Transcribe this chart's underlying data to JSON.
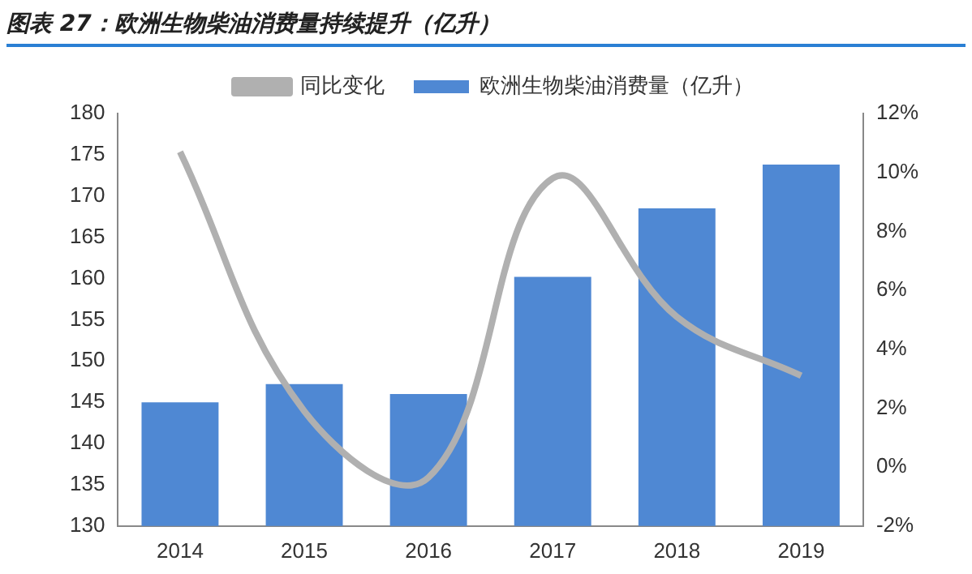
{
  "chart_data": {
    "type": "bar",
    "title": "图表 27：欧洲生物柴油消费量持续提升（亿升）",
    "categories": [
      "2014",
      "2015",
      "2016",
      "2017",
      "2018",
      "2019"
    ],
    "series": [
      {
        "name": "欧洲生物柴油消费量（亿升）",
        "color": "#4f88d3",
        "values": [
          145,
          147.2,
          146,
          160.2,
          168.5,
          173.8
        ]
      },
      {
        "name": "同比变化",
        "type": "line",
        "axis": "y2",
        "color": "#b0b0b0",
        "values": [
          10.7,
          1.9,
          -0.35,
          9.8,
          5.1,
          3.1
        ]
      }
    ],
    "ylim": [
      130,
      180
    ],
    "yticks": [
      130,
      135,
      140,
      145,
      150,
      155,
      160,
      165,
      170,
      175,
      180
    ],
    "y2lim": [
      -2,
      12
    ],
    "y2ticks": [
      {
        "value": -2,
        "label": "-2%"
      },
      {
        "value": 0,
        "label": "0%"
      },
      {
        "value": 2,
        "label": "2%"
      },
      {
        "value": 4,
        "label": "4%"
      },
      {
        "value": 6,
        "label": "6%"
      },
      {
        "value": 8,
        "label": "8%"
      },
      {
        "value": 10,
        "label": "10%"
      },
      {
        "value": 12,
        "label": "12%"
      }
    ],
    "grid": false,
    "legend": "top"
  }
}
